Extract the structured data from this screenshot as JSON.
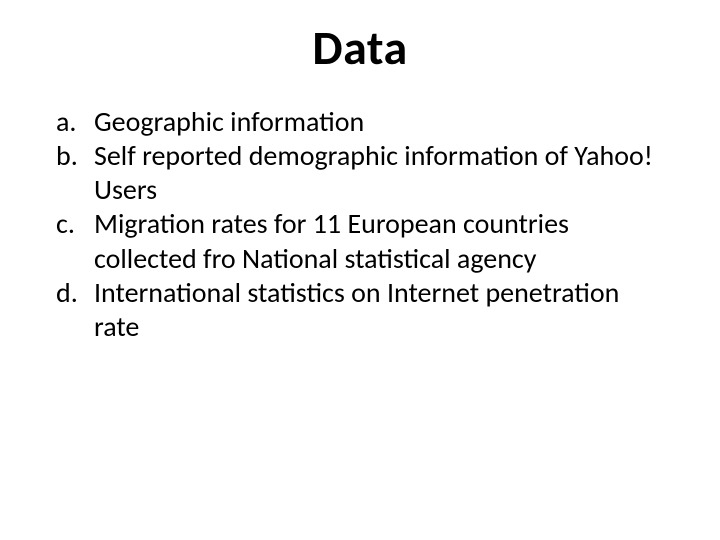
{
  "title": "Data",
  "items": [
    "Geographic information",
    "Self reported demographic information of Yahoo! Users",
    "Migration rates for 11 European countries collected fro National statistical agency",
    "International statistics on Internet penetration rate"
  ],
  "colors": {
    "background": "#ffffff",
    "text": "#000000"
  },
  "typography": {
    "title_fontsize": 48,
    "title_weight": 700,
    "body_fontsize": 28,
    "font_family": "Calibri"
  }
}
